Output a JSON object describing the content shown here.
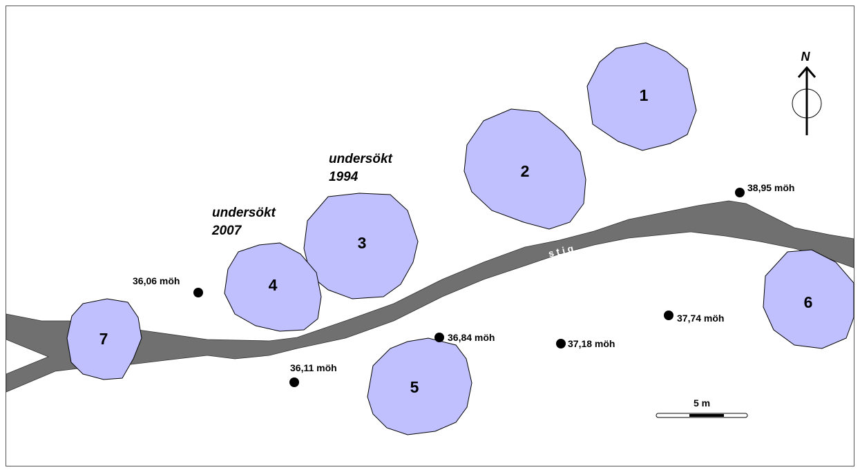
{
  "map": {
    "mounds": [
      "1",
      "2",
      "3",
      "4",
      "5",
      "6",
      "7"
    ],
    "annotations": [
      [
        "undersökt",
        "1994"
      ],
      [
        "undersökt",
        "2007"
      ]
    ],
    "elevations": [
      "36,06 möh",
      "36,11 möh",
      "36,84 möh",
      "37,18 möh",
      "37,74 möh",
      "38,95 möh"
    ],
    "path_label": "stig",
    "north": "N",
    "scale": "5 m"
  }
}
